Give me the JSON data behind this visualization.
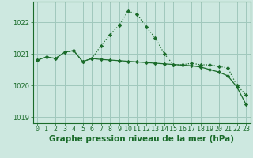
{
  "title": "Graphe pression niveau de la mer (hPa)",
  "background_color": "#cde8e0",
  "grid_color": "#a0c8bc",
  "line_color": "#1a6b2a",
  "x_hours": [
    0,
    1,
    2,
    3,
    4,
    5,
    6,
    7,
    8,
    9,
    10,
    11,
    12,
    13,
    14,
    15,
    16,
    17,
    18,
    19,
    20,
    21,
    22,
    23
  ],
  "series1": [
    1020.8,
    1020.9,
    1020.85,
    1021.05,
    1021.1,
    1020.75,
    1020.85,
    1021.25,
    1021.6,
    1021.9,
    1022.35,
    1022.25,
    1021.85,
    1021.5,
    1021.0,
    1020.65,
    1020.65,
    1020.7,
    1020.65,
    1020.65,
    1020.6,
    1020.55,
    1020.0,
    1019.7
  ],
  "series2": [
    1020.8,
    1020.9,
    1020.85,
    1021.05,
    1021.1,
    1020.75,
    1020.85,
    1020.82,
    1020.8,
    1020.78,
    1020.76,
    1020.74,
    1020.72,
    1020.7,
    1020.68,
    1020.66,
    1020.64,
    1020.62,
    1020.58,
    1020.5,
    1020.42,
    1020.3,
    1019.95,
    1019.4
  ],
  "ylim": [
    1018.8,
    1022.65
  ],
  "yticks": [
    1019,
    1020,
    1021,
    1022
  ],
  "title_fontsize": 7.5,
  "tick_fontsize": 6.0
}
